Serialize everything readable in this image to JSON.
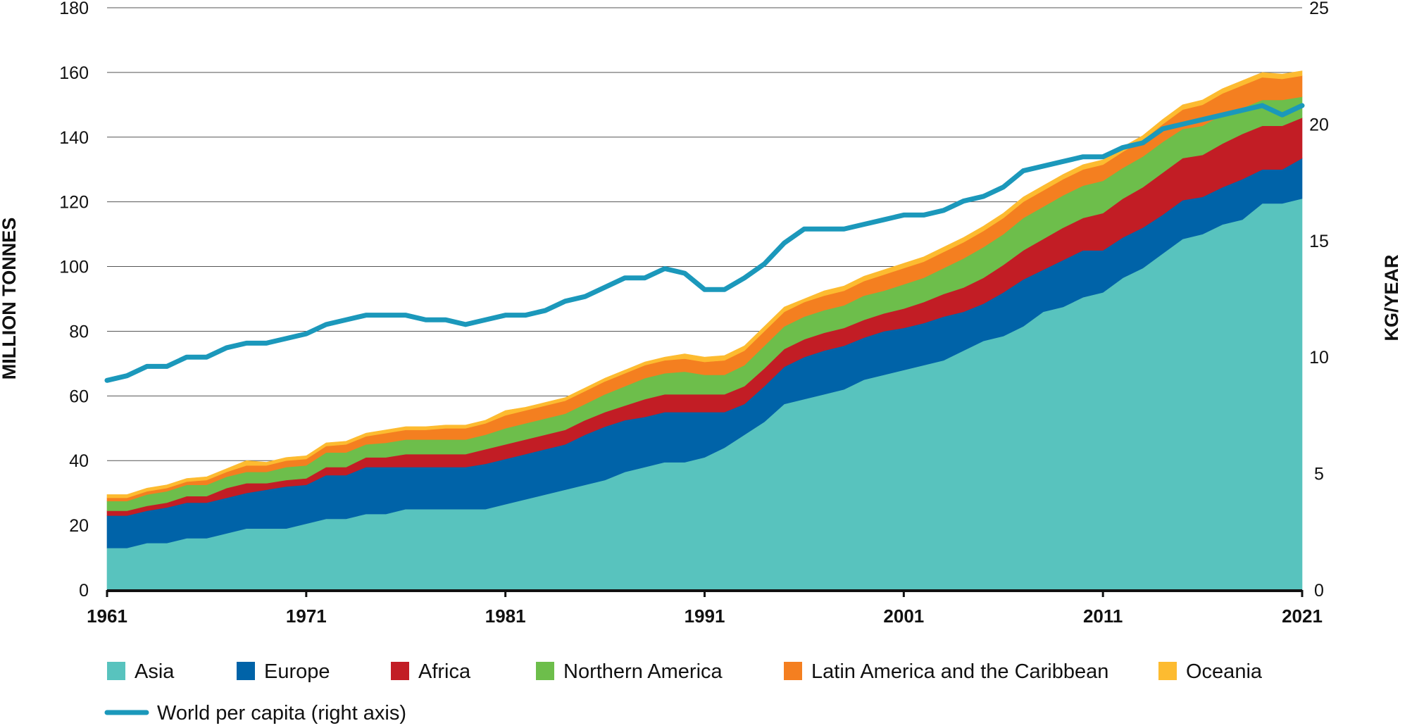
{
  "chart_data": {
    "type": "area",
    "stacked": true,
    "x_tick_labels": [
      "1961",
      "1971",
      "1981",
      "1991",
      "2001",
      "2011",
      "2021"
    ],
    "xlim": [
      1961,
      2021
    ],
    "left_axis": {
      "label": "MILLION TONNES",
      "ticks": [
        "0",
        "20",
        "40",
        "60",
        "80",
        "100",
        "120",
        "140",
        "160",
        "180"
      ],
      "ylim": [
        0,
        180
      ]
    },
    "right_axis": {
      "label": "KG/YEAR",
      "ticks": [
        "0",
        "5",
        "10",
        "15",
        "20",
        "25"
      ],
      "ylim": [
        0,
        25
      ]
    },
    "grid": "horizontal",
    "legend_position": "bottom",
    "x": [
      1961,
      1962,
      1963,
      1964,
      1965,
      1966,
      1967,
      1968,
      1969,
      1970,
      1971,
      1972,
      1973,
      1974,
      1975,
      1976,
      1977,
      1978,
      1979,
      1980,
      1981,
      1982,
      1983,
      1984,
      1985,
      1986,
      1987,
      1988,
      1989,
      1990,
      1991,
      1992,
      1993,
      1994,
      1995,
      1996,
      1997,
      1998,
      1999,
      2000,
      2001,
      2002,
      2003,
      2004,
      2005,
      2006,
      2007,
      2008,
      2009,
      2010,
      2011,
      2012,
      2013,
      2014,
      2015,
      2016,
      2017,
      2018,
      2019,
      2020,
      2021
    ],
    "series": [
      {
        "name": "Asia",
        "color": "#58c3be",
        "values": [
          13,
          13,
          14.5,
          14.5,
          16,
          16,
          17.5,
          19,
          19,
          19,
          20.5,
          22,
          22,
          23.5,
          23.5,
          25,
          25,
          25,
          25,
          25,
          26.5,
          28,
          29.5,
          31,
          32.5,
          34,
          36.5,
          38,
          39.5,
          39.5,
          41,
          44,
          48,
          52,
          57.5,
          59,
          60.5,
          62,
          65,
          66.5,
          68,
          69.5,
          71,
          74,
          77,
          78.5,
          81.5,
          86,
          87.5,
          90.5,
          92,
          96.5,
          99.5,
          104,
          108.5,
          110,
          113,
          114.5,
          119.5,
          119.5,
          121
        ]
      },
      {
        "name": "Europe",
        "color": "#0063a8",
        "values": [
          10,
          10,
          10,
          11,
          11,
          11,
          11,
          11,
          12,
          13,
          12,
          13.5,
          13.5,
          14.5,
          14.5,
          13,
          13,
          13,
          13,
          14,
          14,
          14,
          14,
          14,
          15.5,
          16.5,
          16,
          15.5,
          15.5,
          15.5,
          14,
          11,
          9.5,
          11,
          11.5,
          13,
          13.5,
          13.5,
          13,
          13.5,
          13,
          13,
          13.5,
          12,
          11.5,
          13.5,
          14.5,
          13,
          14.5,
          14.5,
          13,
          12.5,
          12.5,
          12,
          12,
          11.5,
          11.5,
          12.5,
          10.5,
          10.5,
          12.5
        ]
      },
      {
        "name": "Africa",
        "color": "#c21d25",
        "values": [
          1.5,
          1.5,
          1.5,
          1.5,
          2,
          2,
          3,
          3,
          2,
          2,
          2,
          2.5,
          2.5,
          3,
          3,
          4,
          4,
          4,
          4,
          4.5,
          4.5,
          4.5,
          4.5,
          4.5,
          4.5,
          4.5,
          4.5,
          5.5,
          5.5,
          5.5,
          5.5,
          5.5,
          5.5,
          5.5,
          5.5,
          5.5,
          5.5,
          5.5,
          5.5,
          5.5,
          6,
          6.5,
          7,
          7.5,
          8,
          8.5,
          9,
          9.5,
          10,
          10,
          11.5,
          12,
          12.5,
          13,
          13,
          13,
          13.5,
          14,
          13.5,
          13.5,
          12.5
        ]
      },
      {
        "name": "Northern America",
        "color": "#6dbe4b",
        "values": [
          3,
          3,
          3.5,
          3.5,
          3.5,
          3.5,
          3.5,
          3.5,
          3.5,
          4,
          4,
          4.5,
          4.5,
          4,
          4.5,
          4.5,
          4.5,
          4.5,
          4.5,
          4.5,
          5,
          5,
          5,
          5,
          5,
          5.5,
          6,
          6.5,
          6.5,
          7,
          6,
          6,
          6.5,
          7,
          7,
          7,
          7,
          7,
          7.5,
          7,
          7.5,
          7.5,
          8,
          9,
          9.5,
          9.5,
          10,
          10,
          10,
          10,
          10,
          9.5,
          9.5,
          9.5,
          9,
          9,
          9,
          8,
          8,
          8,
          6.5
        ]
      },
      {
        "name": "Latin America and the Caribbean",
        "color": "#f47f20",
        "values": [
          1,
          1,
          1,
          1,
          1,
          1.5,
          1.5,
          2,
          2,
          2,
          2,
          2,
          2.5,
          2.5,
          3,
          3,
          3,
          3.5,
          3.5,
          3.5,
          4,
          4,
          4,
          4,
          4,
          4,
          4,
          4,
          4,
          4,
          4,
          4.5,
          4.5,
          4.5,
          4.5,
          4.5,
          4.5,
          4.5,
          4.5,
          5,
          5,
          5,
          5,
          5,
          5,
          5,
          5,
          5,
          5,
          5,
          5,
          5,
          5,
          5.5,
          6,
          6.5,
          6.5,
          7,
          7,
          6.5,
          6.5
        ]
      },
      {
        "name": "Oceania",
        "color": "#fdbb30",
        "values": [
          1,
          1,
          1,
          1,
          1,
          1,
          1,
          1.5,
          1,
          1,
          1,
          1,
          1,
          1,
          1,
          1,
          1,
          1,
          1,
          1,
          1.5,
          1,
          1,
          1,
          1,
          1,
          1,
          1,
          1,
          1.5,
          1.5,
          1.5,
          1.5,
          1.5,
          1.5,
          1,
          1.5,
          1.5,
          1.5,
          1.5,
          1.5,
          1.5,
          1.5,
          1.5,
          1.5,
          1.5,
          1.5,
          1.5,
          1.5,
          1.5,
          1.5,
          1.5,
          1.5,
          1.5,
          1.5,
          1.5,
          1.5,
          1.5,
          1.5,
          1.5,
          1.5
        ]
      },
      {
        "name": "World per capita (right axis)",
        "color": "#1b98bb",
        "axis": "right",
        "values": [
          9.0,
          9.2,
          9.6,
          9.6,
          10.0,
          10.0,
          10.4,
          10.6,
          10.6,
          10.8,
          11.0,
          11.4,
          11.6,
          11.8,
          11.8,
          11.8,
          11.6,
          11.6,
          11.4,
          11.6,
          11.8,
          11.8,
          12.0,
          12.4,
          12.6,
          13.0,
          13.4,
          13.4,
          13.8,
          13.6,
          12.9,
          12.9,
          13.4,
          14.0,
          14.9,
          15.5,
          15.5,
          15.5,
          15.7,
          15.9,
          16.1,
          16.1,
          16.3,
          16.7,
          16.9,
          17.3,
          18.0,
          18.2,
          18.4,
          18.6,
          18.6,
          19.0,
          19.2,
          19.8,
          20.0,
          20.2,
          20.4,
          20.6,
          20.8,
          20.4,
          20.8
        ]
      }
    ]
  }
}
